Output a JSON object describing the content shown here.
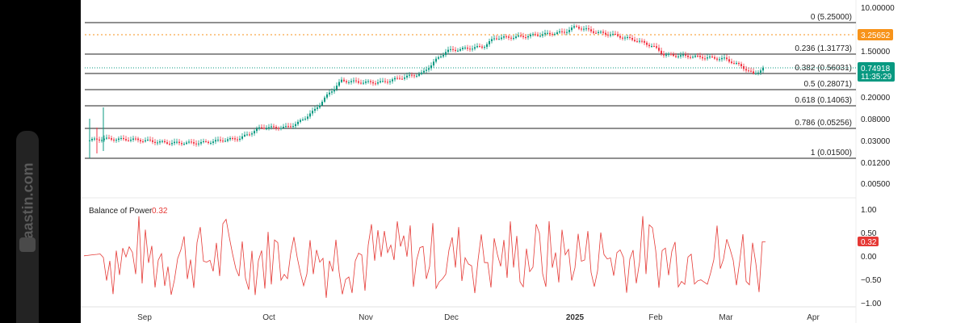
{
  "watermark": {
    "text": "Raastin.com"
  },
  "price_axis": {
    "labels": [
      "10.00000",
      "1.50000",
      "0.20000",
      "0.08000",
      "0.03000",
      "0.01200",
      "0.00500"
    ],
    "scale": "log"
  },
  "fib_levels": [
    {
      "label": "0 (5.25000)",
      "value": 5.25
    },
    {
      "label": "0.236 (1.31773)",
      "value": 1.31773
    },
    {
      "label": "0.382 (0.56031)",
      "value": 0.56031
    },
    {
      "label": "0.5 (0.28071)",
      "value": 0.28071
    },
    {
      "label": "0.618 (0.14063)",
      "value": 0.14063
    },
    {
      "label": "0.786 (0.05256)",
      "value": 0.05256
    },
    {
      "label": "1 (0.01500)",
      "value": 0.015
    }
  ],
  "markers": {
    "orange_line": {
      "value": "3.25652",
      "color": "#f7931a"
    },
    "current_price": {
      "value": "0.74918",
      "countdown": "11:35:29",
      "color": "#089981"
    }
  },
  "bop": {
    "title": "Balance of Power",
    "value": "0.32",
    "color": "#e53935",
    "axis_labels": [
      "1.00",
      "0.50",
      "0.00",
      "−0.50",
      "−1.00"
    ]
  },
  "x_axis": {
    "labels": [
      "Sep",
      "Oct",
      "Nov",
      "Dec",
      "2025",
      "Feb",
      "Mar",
      "Apr"
    ]
  },
  "colors": {
    "up": "#089981",
    "down": "#f23645"
  },
  "chart_data": {
    "type": "candlestick",
    "scale": "log",
    "approx_close_path": [
      {
        "x": "Aug (late)",
        "y": 0.032
      },
      {
        "x": "Sep",
        "y": 0.03
      },
      {
        "x": "Oct",
        "y": 0.045
      },
      {
        "x": "Nov",
        "y": 0.3
      },
      {
        "x": "Dec",
        "y": 1.2
      },
      {
        "x": "2025",
        "y": 5.0
      },
      {
        "x": "Feb",
        "y": 1.3
      },
      {
        "x": "Mar",
        "y": 0.65
      },
      {
        "x": "Mar (mid)",
        "y": 0.749
      }
    ],
    "indicator": {
      "name": "Balance of Power",
      "last": 0.32,
      "range": [
        -1,
        1
      ]
    }
  }
}
